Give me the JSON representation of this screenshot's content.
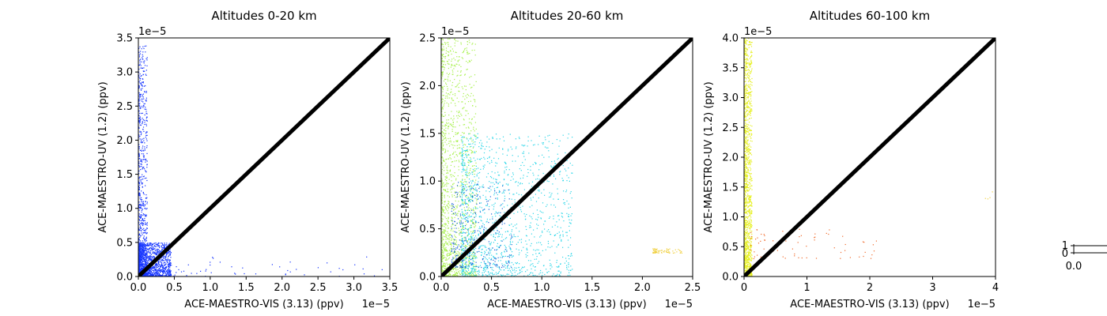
{
  "chart_data": [
    {
      "type": "scatter",
      "title": "Altitudes 0-20 km",
      "xlabel": "ACE-MAESTRO-VIS (3.13) (ppv)",
      "ylabel": "ACE-MAESTRO-UV (1.2) (ppv)",
      "xlim": [
        0,
        3.5
      ],
      "ylim": [
        0,
        3.5
      ],
      "xticks": [
        "0.0",
        "0.5",
        "1.0",
        "1.5",
        "2.0",
        "2.5",
        "3.0",
        "3.5"
      ],
      "yticks": [
        "0.0",
        "0.5",
        "1.0",
        "1.5",
        "2.0",
        "2.5",
        "3.0",
        "3.5"
      ],
      "x_offset_label": "1e−5",
      "y_offset_label": "1e−5",
      "scale_note": "values in units of 1e-5 ppv",
      "dominant_color": "#1434ff",
      "reference_line": {
        "from": [
          0,
          0
        ],
        "to": [
          3.5,
          3.5
        ],
        "color": "#000000"
      },
      "clusters": [
        {
          "name": "",
          "color": "#1434ff",
          "x_range": [
            0,
            0.12
          ],
          "y_range": [
            0,
            3.4
          ],
          "density": "high"
        },
        {
          "name": "",
          "color": "#1434ff",
          "x_range": [
            0,
            0.45
          ],
          "y_range": [
            0,
            0.5
          ],
          "density": "very high"
        },
        {
          "name": "",
          "color": "#1434ff",
          "x_range": [
            0.3,
            3.4
          ],
          "y_range": [
            0,
            0.3
          ],
          "density": "low"
        }
      ]
    },
    {
      "type": "scatter",
      "title": "Altitudes 20-60 km",
      "xlabel": "ACE-MAESTRO-VIS (3.13) (ppv)",
      "ylabel": "ACE-MAESTRO-UV (1.2) (ppv)",
      "xlim": [
        0,
        2.5
      ],
      "ylim": [
        0,
        2.5
      ],
      "xticks": [
        "0.0",
        "0.5",
        "1.0",
        "1.5",
        "2.0",
        "2.5"
      ],
      "yticks": [
        "0.0",
        "0.5",
        "1.0",
        "1.5",
        "2.0",
        "2.5"
      ],
      "x_offset_label": "1e−5",
      "y_offset_label": "1e−5",
      "scale_note": "values in units of 1e-5 ppv",
      "reference_line": {
        "from": [
          0,
          0
        ],
        "to": [
          2.5,
          2.5
        ],
        "color": "#000000"
      },
      "clusters": [
        {
          "name": "",
          "color": "#a6f04a",
          "x_range": [
            0,
            0.35
          ],
          "y_range": [
            0,
            2.5
          ],
          "density": "very high"
        },
        {
          "name": "",
          "color": "#2bd6e8",
          "x_range": [
            0.2,
            1.3
          ],
          "y_range": [
            0,
            1.5
          ],
          "density": "very high"
        },
        {
          "name": "",
          "color": "#1a64d8",
          "x_range": [
            0.1,
            0.7
          ],
          "y_range": [
            0.1,
            1.0
          ],
          "density": "medium"
        },
        {
          "name": "",
          "color": "#f0d040",
          "x_range": [
            2.1,
            2.4
          ],
          "y_range": [
            0.25,
            0.3
          ],
          "density": "low"
        }
      ]
    },
    {
      "type": "scatter",
      "title": "Altitudes 60-100 km",
      "xlabel": "ACE-MAESTRO-VIS (3.13) (ppv)",
      "ylabel": "ACE-MAESTRO-UV (1.2) (ppv)",
      "xlim": [
        0,
        4
      ],
      "ylim": [
        0,
        4.0
      ],
      "xticks": [
        "0",
        "1",
        "2",
        "3",
        "4"
      ],
      "yticks": [
        "0.0",
        "0.5",
        "1.0",
        "1.5",
        "2.0",
        "2.5",
        "3.0",
        "3.5",
        "4.0"
      ],
      "x_offset_label": "1e−5",
      "y_offset_label": "1e−5",
      "scale_note": "values in units of 1e-5 ppv",
      "reference_line": {
        "from": [
          0,
          0
        ],
        "to": [
          4,
          4
        ],
        "color": "#000000"
      },
      "clusters": [
        {
          "name": "",
          "color": "#e6f020",
          "x_range": [
            0,
            0.12
          ],
          "y_range": [
            0,
            4.0
          ],
          "density": "very high"
        },
        {
          "name": "",
          "color": "#f06a2a",
          "x_range": [
            0.1,
            2.2
          ],
          "y_range": [
            0.3,
            0.8
          ],
          "density": "low"
        },
        {
          "name": "",
          "color": "#f0d040",
          "x_range": [
            3.8,
            3.95
          ],
          "y_range": [
            1.3,
            1.45
          ],
          "density": "very low"
        }
      ]
    }
  ],
  "colorbar": {
    "tick_top": "1",
    "tick_bottom": "0",
    "xtick": "0.0"
  }
}
